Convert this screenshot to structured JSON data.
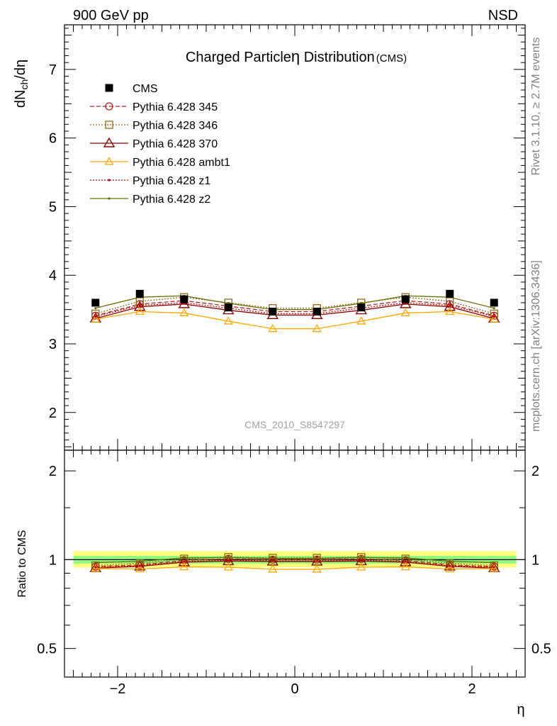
{
  "header": {
    "left": "900 GeV pp",
    "right": "NSD"
  },
  "side_labels": {
    "rivet": "Rivet 3.1.10, ≥ 2.7M events",
    "source": "mcplots.cern.ch [arXiv:1306.3436]"
  },
  "analysis_id": "CMS_2010_S8547297",
  "colors": {
    "cms": "#000000",
    "p345": "#b22222",
    "p346": "#8b6914",
    "p370": "#8b0000",
    "ambt1": "#ffa500",
    "z1": "#cc0000",
    "z2": "#6b6b00",
    "band_inner": "#7cfc7c",
    "band_outer": "#ffff66"
  },
  "chart_data": [
    {
      "type": "line",
      "title": "Charged Particle",
      "title_symbol": "η",
      "title_rest": " Distribution",
      "title_tag": "(CMS)",
      "ylabel_main": "dN",
      "ylabel_sub": "ch",
      "ylabel_rest": "/dη",
      "ylim": [
        1.45,
        7.65
      ],
      "xlim": [
        -2.6,
        2.6
      ],
      "yticks": [
        2,
        3,
        4,
        5,
        6,
        7
      ],
      "ytick_labels": [
        "2",
        "3",
        "4",
        "5",
        "6",
        "7"
      ],
      "x": [
        -2.25,
        -1.75,
        -1.25,
        -0.75,
        -0.25,
        0.25,
        0.75,
        1.25,
        1.75,
        2.25
      ],
      "legend_position": "top-left",
      "series": [
        {
          "key": "cms",
          "name": "CMS",
          "marker": "square",
          "line": "none",
          "values": [
            3.6,
            3.73,
            3.65,
            3.53,
            3.47,
            3.47,
            3.53,
            3.65,
            3.73,
            3.6
          ]
        },
        {
          "key": "p345",
          "name": "Pythia 6.428 345",
          "marker": "circle-open",
          "line": "dashed",
          "values": [
            3.41,
            3.58,
            3.63,
            3.55,
            3.47,
            3.47,
            3.55,
            3.63,
            3.58,
            3.41
          ]
        },
        {
          "key": "p346",
          "name": "Pythia 6.428 346",
          "marker": "square-open",
          "line": "dotted",
          "values": [
            3.44,
            3.62,
            3.68,
            3.6,
            3.52,
            3.52,
            3.6,
            3.68,
            3.62,
            3.44
          ]
        },
        {
          "key": "p370",
          "name": "Pythia 6.428 370",
          "marker": "triangle-open-large",
          "line": "solid",
          "values": [
            3.37,
            3.54,
            3.58,
            3.49,
            3.42,
            3.42,
            3.49,
            3.58,
            3.54,
            3.37
          ]
        },
        {
          "key": "ambt1",
          "name": "Pythia 6.428 ambt1",
          "marker": "triangle-open",
          "line": "solid",
          "values": [
            3.36,
            3.47,
            3.45,
            3.33,
            3.22,
            3.22,
            3.33,
            3.45,
            3.47,
            3.36
          ]
        },
        {
          "key": "z1",
          "name": "Pythia 6.428 z1",
          "marker": "dot",
          "line": "dotted",
          "values": [
            3.4,
            3.56,
            3.6,
            3.52,
            3.44,
            3.44,
            3.52,
            3.6,
            3.56,
            3.4
          ]
        },
        {
          "key": "z2",
          "name": "Pythia 6.428 z2",
          "marker": "dot",
          "line": "solid",
          "values": [
            3.52,
            3.68,
            3.7,
            3.59,
            3.5,
            3.5,
            3.59,
            3.7,
            3.68,
            3.52
          ]
        }
      ]
    },
    {
      "type": "line",
      "ylabel": "Ratio to CMS",
      "xlabel": "η",
      "log_y": true,
      "ylim": [
        0.4,
        2.35
      ],
      "xlim": [
        -2.6,
        2.6
      ],
      "yticks": [
        0.5,
        1,
        2
      ],
      "ytick_labels": [
        "0.5",
        "1",
        "2"
      ],
      "xticks": [
        -2,
        0,
        2
      ],
      "xtick_labels": [
        "−2",
        "0",
        "2"
      ],
      "x": [
        -2.25,
        -1.75,
        -1.25,
        -0.75,
        -0.25,
        0.25,
        0.75,
        1.25,
        1.75,
        2.25
      ],
      "band_inner": [
        0.97,
        1.03
      ],
      "band_outer": [
        0.94,
        1.07
      ],
      "series": [
        {
          "key": "p345",
          "values": [
            0.947,
            0.96,
            0.995,
            1.006,
            1.0,
            1.0,
            1.006,
            0.995,
            0.96,
            0.947
          ]
        },
        {
          "key": "p346",
          "values": [
            0.956,
            0.971,
            1.008,
            1.02,
            1.014,
            1.014,
            1.02,
            1.008,
            0.971,
            0.956
          ]
        },
        {
          "key": "p370",
          "values": [
            0.936,
            0.949,
            0.981,
            0.989,
            0.986,
            0.986,
            0.989,
            0.981,
            0.949,
            0.936
          ]
        },
        {
          "key": "ambt1",
          "values": [
            0.933,
            0.93,
            0.945,
            0.943,
            0.928,
            0.928,
            0.943,
            0.945,
            0.93,
            0.933
          ]
        },
        {
          "key": "z1",
          "values": [
            0.944,
            0.954,
            0.986,
            0.997,
            0.991,
            0.991,
            0.997,
            0.986,
            0.954,
            0.944
          ]
        },
        {
          "key": "z2",
          "values": [
            0.978,
            0.987,
            1.014,
            1.017,
            1.009,
            1.009,
            1.017,
            1.014,
            0.987,
            0.978
          ]
        }
      ]
    }
  ]
}
